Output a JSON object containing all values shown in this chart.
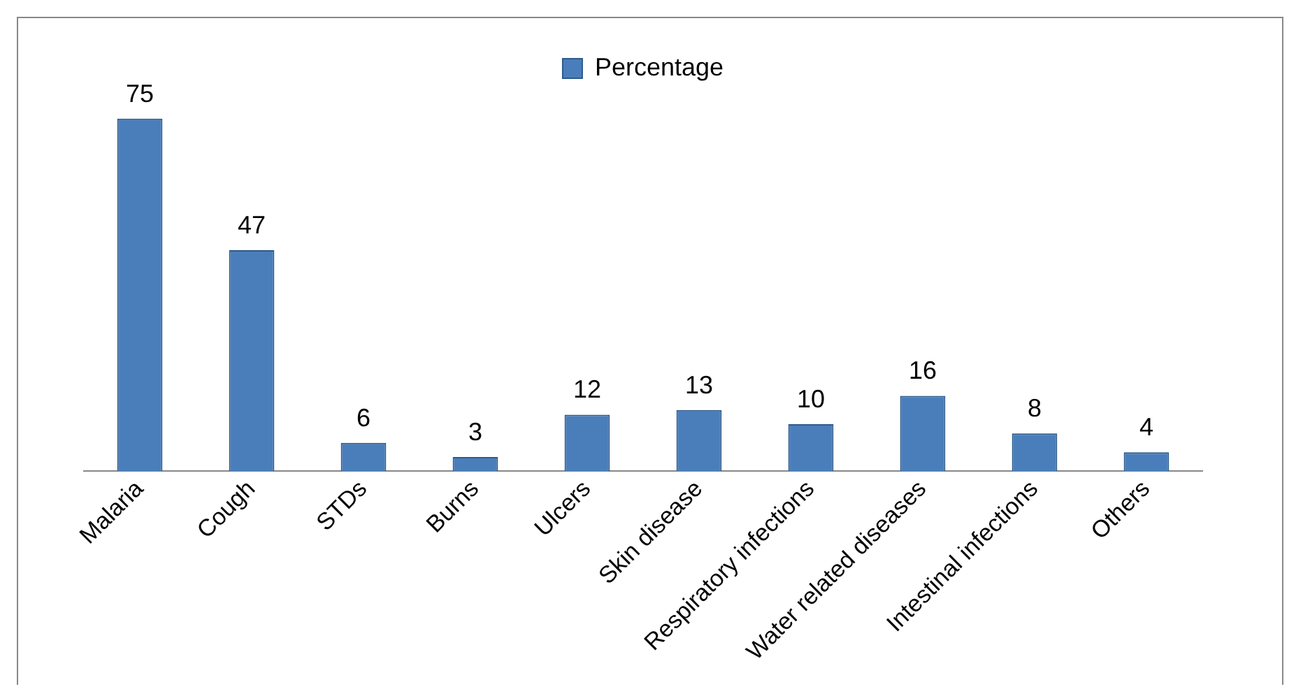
{
  "chart_data": {
    "type": "bar",
    "categories": [
      "Malaria",
      "Cough",
      "STDs",
      "Burns",
      "Ulcers",
      "Skin disease",
      "Respiratory infections",
      "Water related diseases",
      "Intestinal infections",
      "Others"
    ],
    "series": [
      {
        "name": "Percentage",
        "color": "#4a7ebb",
        "values": [
          75,
          47,
          6,
          3,
          12,
          13,
          10,
          16,
          8,
          4
        ]
      }
    ],
    "data_labels": true,
    "legend": "top",
    "grid": false
  }
}
